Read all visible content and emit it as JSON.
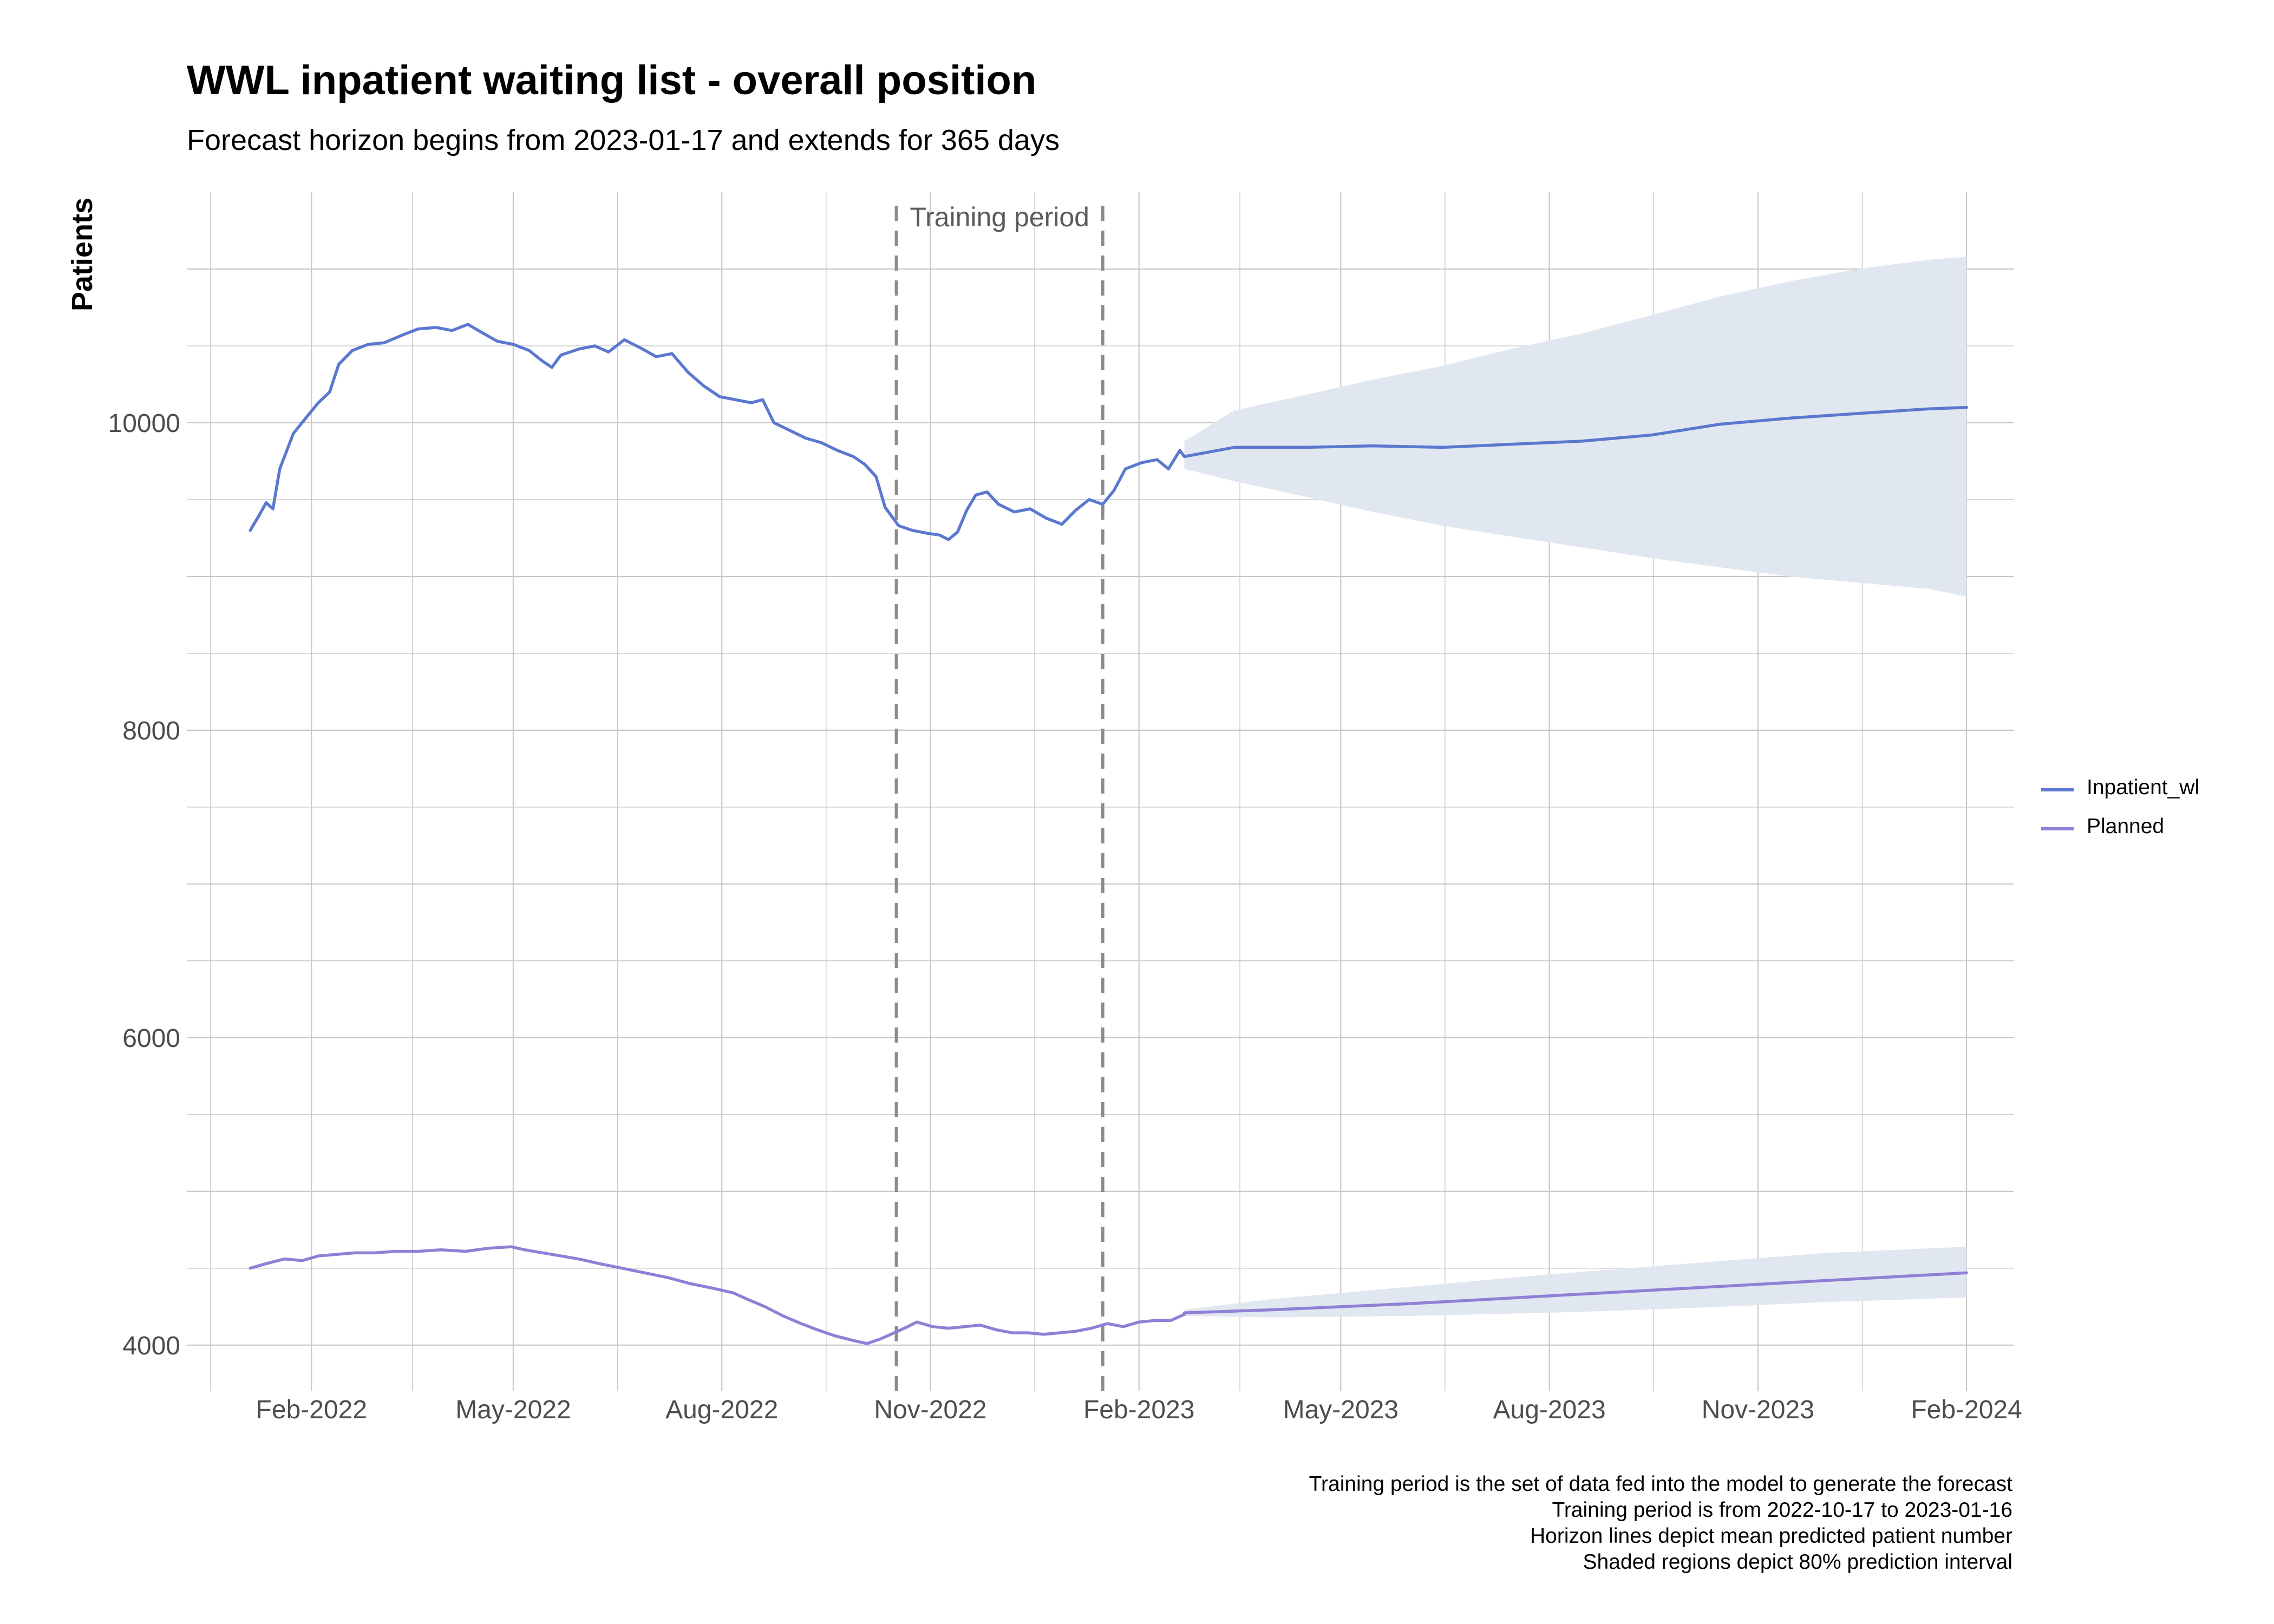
{
  "title": "WWL inpatient waiting list - overall position",
  "subtitle": "Forecast horizon begins from 2023-01-17 and extends for 365 days",
  "caption": [
    "Training period is the set of data fed into the model to generate the forecast",
    "Training period is from 2022-10-17 to 2023-01-16",
    "Horizon lines depict mean predicted patient number",
    "Shaded regions depict 80% prediction interval"
  ],
  "colors": {
    "inpatient": "#5b78cf",
    "planned": "#8f80d6",
    "interval": "#e1e7f0",
    "grid": "#c8c8c8",
    "vline": "#8c8c8c"
  },
  "chart_data": {
    "type": "line",
    "title": "WWL inpatient waiting list - overall position",
    "subtitle": "Forecast horizon begins from 2023-01-17 and extends for 365 days",
    "xlabel": "",
    "ylabel": "Patients",
    "ylim": [
      3700,
      11500
    ],
    "xlim": [
      "2021-12-08",
      "2024-02-22"
    ],
    "x_ticks": [
      "Feb-2022",
      "May-2022",
      "Aug-2022",
      "Nov-2022",
      "Feb-2023",
      "May-2023",
      "Aug-2023",
      "Nov-2023",
      "Feb-2024"
    ],
    "y_ticks": [
      4000,
      6000,
      8000,
      10000
    ],
    "grid": true,
    "legend_position": "right",
    "annotations": [
      {
        "type": "vline",
        "date": "2022-10-17",
        "style": "dashed"
      },
      {
        "type": "vline",
        "date": "2023-01-16",
        "style": "dashed"
      },
      {
        "type": "text",
        "text": "Training period"
      }
    ],
    "series": [
      {
        "name": "Inpatient_wl",
        "role": "observed",
        "points": [
          [
            "2022-01-05",
            9300
          ],
          [
            "2022-01-09",
            9400
          ],
          [
            "2022-01-12",
            9480
          ],
          [
            "2022-01-15",
            9440
          ],
          [
            "2022-01-18",
            9700
          ],
          [
            "2022-01-24",
            9930
          ],
          [
            "2022-01-30",
            10040
          ],
          [
            "2022-02-04",
            10130
          ],
          [
            "2022-02-09",
            10200
          ],
          [
            "2022-02-13",
            10380
          ],
          [
            "2022-02-19",
            10470
          ],
          [
            "2022-02-26",
            10510
          ],
          [
            "2022-03-05",
            10520
          ],
          [
            "2022-03-13",
            10570
          ],
          [
            "2022-03-20",
            10610
          ],
          [
            "2022-03-28",
            10620
          ],
          [
            "2022-04-04",
            10600
          ],
          [
            "2022-04-11",
            10640
          ],
          [
            "2022-04-18",
            10580
          ],
          [
            "2022-04-24",
            10530
          ],
          [
            "2022-05-01",
            10510
          ],
          [
            "2022-05-08",
            10470
          ],
          [
            "2022-05-14",
            10400
          ],
          [
            "2022-05-18",
            10360
          ],
          [
            "2022-05-22",
            10440
          ],
          [
            "2022-05-30",
            10480
          ],
          [
            "2022-06-06",
            10500
          ],
          [
            "2022-06-12",
            10460
          ],
          [
            "2022-06-19",
            10540
          ],
          [
            "2022-06-27",
            10480
          ],
          [
            "2022-07-03",
            10430
          ],
          [
            "2022-07-10",
            10450
          ],
          [
            "2022-07-17",
            10330
          ],
          [
            "2022-07-24",
            10240
          ],
          [
            "2022-07-31",
            10170
          ],
          [
            "2022-08-07",
            10150
          ],
          [
            "2022-08-14",
            10130
          ],
          [
            "2022-08-19",
            10150
          ],
          [
            "2022-08-24",
            10000
          ],
          [
            "2022-08-31",
            9950
          ],
          [
            "2022-09-07",
            9900
          ],
          [
            "2022-09-14",
            9870
          ],
          [
            "2022-09-21",
            9820
          ],
          [
            "2022-09-28",
            9780
          ],
          [
            "2022-10-03",
            9730
          ],
          [
            "2022-10-08",
            9650
          ],
          [
            "2022-10-12",
            9450
          ],
          [
            "2022-10-18",
            9330
          ],
          [
            "2022-10-24",
            9300
          ],
          [
            "2022-10-31",
            9280
          ],
          [
            "2022-11-05",
            9270
          ],
          [
            "2022-11-09",
            9240
          ],
          [
            "2022-11-13",
            9290
          ],
          [
            "2022-11-17",
            9430
          ],
          [
            "2022-11-21",
            9530
          ],
          [
            "2022-11-26",
            9550
          ],
          [
            "2022-12-01",
            9470
          ],
          [
            "2022-12-08",
            9420
          ],
          [
            "2022-12-15",
            9440
          ],
          [
            "2022-12-22",
            9380
          ],
          [
            "2022-12-29",
            9340
          ],
          [
            "2023-01-04",
            9430
          ],
          [
            "2023-01-10",
            9500
          ],
          [
            "2023-01-16",
            9470
          ],
          [
            "2023-01-21",
            9560
          ],
          [
            "2023-01-26",
            9700
          ],
          [
            "2023-02-02",
            9740
          ],
          [
            "2023-02-09",
            9760
          ],
          [
            "2023-02-14",
            9700
          ],
          [
            "2023-02-19",
            9820
          ],
          [
            "2023-02-21",
            9780
          ]
        ]
      },
      {
        "name": "Planned",
        "role": "observed",
        "points": [
          [
            "2022-01-05",
            4500
          ],
          [
            "2022-01-12",
            4530
          ],
          [
            "2022-01-20",
            4560
          ],
          [
            "2022-01-28",
            4550
          ],
          [
            "2022-02-04",
            4580
          ],
          [
            "2022-02-12",
            4590
          ],
          [
            "2022-02-20",
            4600
          ],
          [
            "2022-03-01",
            4600
          ],
          [
            "2022-03-10",
            4610
          ],
          [
            "2022-03-20",
            4610
          ],
          [
            "2022-03-30",
            4620
          ],
          [
            "2022-04-10",
            4610
          ],
          [
            "2022-04-20",
            4630
          ],
          [
            "2022-04-30",
            4640
          ],
          [
            "2022-05-06",
            4620
          ],
          [
            "2022-05-14",
            4600
          ],
          [
            "2022-05-22",
            4580
          ],
          [
            "2022-05-30",
            4560
          ],
          [
            "2022-06-08",
            4530
          ],
          [
            "2022-06-18",
            4500
          ],
          [
            "2022-06-28",
            4470
          ],
          [
            "2022-07-08",
            4440
          ],
          [
            "2022-07-18",
            4400
          ],
          [
            "2022-07-28",
            4370
          ],
          [
            "2022-08-06",
            4340
          ],
          [
            "2022-08-12",
            4300
          ],
          [
            "2022-08-20",
            4250
          ],
          [
            "2022-08-28",
            4190
          ],
          [
            "2022-09-05",
            4140
          ],
          [
            "2022-09-12",
            4100
          ],
          [
            "2022-09-20",
            4060
          ],
          [
            "2022-09-28",
            4030
          ],
          [
            "2022-10-04",
            4010
          ],
          [
            "2022-10-10",
            4040
          ],
          [
            "2022-10-16",
            4080
          ],
          [
            "2022-10-22",
            4120
          ],
          [
            "2022-10-26",
            4150
          ],
          [
            "2022-11-02",
            4120
          ],
          [
            "2022-11-09",
            4110
          ],
          [
            "2022-11-16",
            4120
          ],
          [
            "2022-11-23",
            4130
          ],
          [
            "2022-11-30",
            4100
          ],
          [
            "2022-12-07",
            4080
          ],
          [
            "2022-12-14",
            4080
          ],
          [
            "2022-12-21",
            4070
          ],
          [
            "2022-12-28",
            4080
          ],
          [
            "2023-01-04",
            4090
          ],
          [
            "2023-01-11",
            4110
          ],
          [
            "2023-01-18",
            4140
          ],
          [
            "2023-01-25",
            4120
          ],
          [
            "2023-02-01",
            4150
          ],
          [
            "2023-02-08",
            4160
          ],
          [
            "2023-02-15",
            4160
          ],
          [
            "2023-02-21",
            4200
          ]
        ]
      },
      {
        "name": "Inpatient_wl forecast mean",
        "role": "forecast",
        "points": [
          [
            "2023-02-21",
            9780
          ],
          [
            "2023-03-15",
            9840
          ],
          [
            "2023-04-15",
            9840
          ],
          [
            "2023-05-15",
            9850
          ],
          [
            "2023-06-15",
            9840
          ],
          [
            "2023-07-15",
            9860
          ],
          [
            "2023-08-15",
            9880
          ],
          [
            "2023-09-15",
            9920
          ],
          [
            "2023-10-15",
            9990
          ],
          [
            "2023-11-15",
            10030
          ],
          [
            "2023-12-15",
            10060
          ],
          [
            "2024-01-15",
            10090
          ],
          [
            "2024-02-01",
            10100
          ]
        ]
      },
      {
        "name": "Planned forecast mean",
        "role": "forecast",
        "points": [
          [
            "2023-02-21",
            4210
          ],
          [
            "2023-04-01",
            4230
          ],
          [
            "2023-06-01",
            4270
          ],
          [
            "2023-08-01",
            4320
          ],
          [
            "2023-10-01",
            4370
          ],
          [
            "2023-12-01",
            4420
          ],
          [
            "2024-02-01",
            4470
          ]
        ]
      }
    ],
    "intervals": [
      {
        "name": "Inpatient_wl 80% prediction interval",
        "points": [
          [
            "2023-02-21",
            9700,
            9880
          ],
          [
            "2023-03-15",
            9620,
            10080
          ],
          [
            "2023-04-15",
            9520,
            10180
          ],
          [
            "2023-05-15",
            9420,
            10280
          ],
          [
            "2023-06-15",
            9330,
            10370
          ],
          [
            "2023-07-15",
            9260,
            10480
          ],
          [
            "2023-08-15",
            9190,
            10580
          ],
          [
            "2023-09-15",
            9120,
            10700
          ],
          [
            "2023-10-15",
            9060,
            10820
          ],
          [
            "2023-11-15",
            9000,
            10920
          ],
          [
            "2023-12-15",
            8960,
            11000
          ],
          [
            "2024-01-15",
            8920,
            11060
          ],
          [
            "2024-02-01",
            8870,
            11080
          ]
        ]
      },
      {
        "name": "Planned 80% prediction interval",
        "points": [
          [
            "2023-02-21",
            4190,
            4230
          ],
          [
            "2023-04-01",
            4180,
            4300
          ],
          [
            "2023-06-01",
            4190,
            4380
          ],
          [
            "2023-08-01",
            4210,
            4460
          ],
          [
            "2023-10-01",
            4240,
            4530
          ],
          [
            "2023-12-01",
            4280,
            4600
          ],
          [
            "2024-02-01",
            4310,
            4640
          ]
        ]
      }
    ]
  },
  "legend": {
    "items": [
      {
        "label": "Inpatient_wl",
        "color": "#5b78cf"
      },
      {
        "label": "Planned",
        "color": "#8f80d6"
      }
    ]
  }
}
